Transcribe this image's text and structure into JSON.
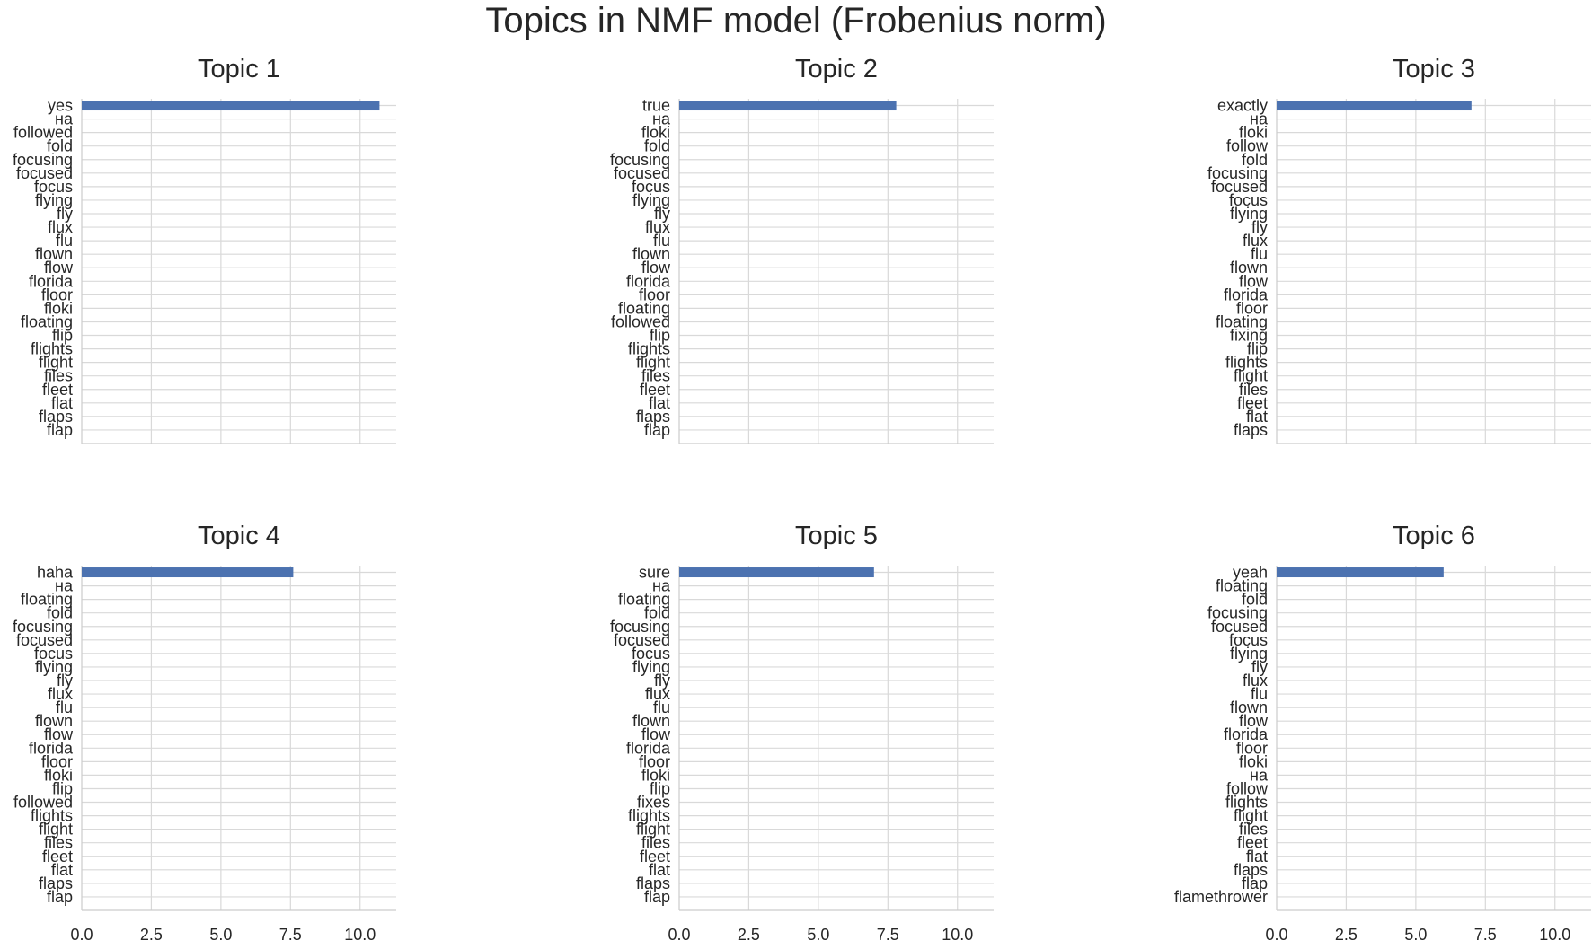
{
  "title": "Topics in NMF model (Frobenius norm)",
  "chart_data": [
    {
      "type": "bar",
      "orientation": "horizontal",
      "title": "Topic 1",
      "categories": [
        "yes",
        "на",
        "followed",
        "fold",
        "focusing",
        "focused",
        "focus",
        "flying",
        "fly",
        "flux",
        "flu",
        "flown",
        "flow",
        "florida",
        "floor",
        "floki",
        "floating",
        "flip",
        "flights",
        "flight",
        "files",
        "fleet",
        "flat",
        "flaps",
        "flap"
      ],
      "values": [
        10.7,
        0,
        0,
        0,
        0,
        0,
        0,
        0,
        0,
        0,
        0,
        0,
        0,
        0,
        0,
        0,
        0,
        0,
        0,
        0,
        0,
        0,
        0,
        0,
        0
      ],
      "xlim": [
        0,
        11.3
      ],
      "xticks": [
        "0.0",
        "2.5",
        "5.0",
        "7.5",
        "10.0"
      ],
      "show_xtick_labels": false,
      "grid": true,
      "bar_color": "#4c72b0"
    },
    {
      "type": "bar",
      "orientation": "horizontal",
      "title": "Topic 2",
      "categories": [
        "true",
        "на",
        "floki",
        "fold",
        "focusing",
        "focused",
        "focus",
        "flying",
        "fly",
        "flux",
        "flu",
        "flown",
        "flow",
        "florida",
        "floor",
        "floating",
        "followed",
        "flip",
        "flights",
        "flight",
        "files",
        "fleet",
        "flat",
        "flaps",
        "flap"
      ],
      "values": [
        7.8,
        0,
        0,
        0,
        0,
        0,
        0,
        0,
        0,
        0,
        0,
        0,
        0,
        0,
        0,
        0,
        0,
        0,
        0,
        0,
        0,
        0,
        0,
        0,
        0
      ],
      "xlim": [
        0,
        11.3
      ],
      "xticks": [
        "0.0",
        "2.5",
        "5.0",
        "7.5",
        "10.0"
      ],
      "show_xtick_labels": false,
      "grid": true,
      "bar_color": "#4c72b0"
    },
    {
      "type": "bar",
      "orientation": "horizontal",
      "title": "Topic 3",
      "categories": [
        "exactly",
        "на",
        "floki",
        "follow",
        "fold",
        "focusing",
        "focused",
        "focus",
        "flying",
        "fly",
        "flux",
        "flu",
        "flown",
        "flow",
        "florida",
        "floor",
        "floating",
        "fixing",
        "flip",
        "flights",
        "flight",
        "files",
        "fleet",
        "flat",
        "flaps"
      ],
      "values": [
        7.0,
        0,
        0,
        0,
        0,
        0,
        0,
        0,
        0,
        0,
        0,
        0,
        0,
        0,
        0,
        0,
        0,
        0,
        0,
        0,
        0,
        0,
        0,
        0,
        0
      ],
      "xlim": [
        0,
        11.3
      ],
      "xticks": [
        "0.0",
        "2.5",
        "5.0",
        "7.5",
        "10.0"
      ],
      "show_xtick_labels": false,
      "grid": true,
      "bar_color": "#4c72b0"
    },
    {
      "type": "bar",
      "orientation": "horizontal",
      "title": "Topic 4",
      "categories": [
        "haha",
        "на",
        "floating",
        "fold",
        "focusing",
        "focused",
        "focus",
        "flying",
        "fly",
        "flux",
        "flu",
        "flown",
        "flow",
        "florida",
        "floor",
        "floki",
        "flip",
        "followed",
        "flights",
        "flight",
        "files",
        "fleet",
        "flat",
        "flaps",
        "flap"
      ],
      "values": [
        7.6,
        0,
        0,
        0,
        0,
        0,
        0,
        0,
        0,
        0,
        0,
        0,
        0,
        0,
        0,
        0,
        0,
        0,
        0,
        0,
        0,
        0,
        0,
        0,
        0
      ],
      "xlim": [
        0,
        11.3
      ],
      "xticks": [
        "0.0",
        "2.5",
        "5.0",
        "7.5",
        "10.0"
      ],
      "show_xtick_labels": true,
      "grid": true,
      "bar_color": "#4c72b0"
    },
    {
      "type": "bar",
      "orientation": "horizontal",
      "title": "Topic 5",
      "categories": [
        "sure",
        "на",
        "floating",
        "fold",
        "focusing",
        "focused",
        "focus",
        "flying",
        "fly",
        "flux",
        "flu",
        "flown",
        "flow",
        "florida",
        "floor",
        "floki",
        "flip",
        "fixes",
        "flights",
        "flight",
        "files",
        "fleet",
        "flat",
        "flaps",
        "flap"
      ],
      "values": [
        7.0,
        0,
        0,
        0,
        0,
        0,
        0,
        0,
        0,
        0,
        0,
        0,
        0,
        0,
        0,
        0,
        0,
        0,
        0,
        0,
        0,
        0,
        0,
        0,
        0
      ],
      "xlim": [
        0,
        11.3
      ],
      "xticks": [
        "0.0",
        "2.5",
        "5.0",
        "7.5",
        "10.0"
      ],
      "show_xtick_labels": true,
      "grid": true,
      "bar_color": "#4c72b0"
    },
    {
      "type": "bar",
      "orientation": "horizontal",
      "title": "Topic 6",
      "categories": [
        "yeah",
        "floating",
        "fold",
        "focusing",
        "focused",
        "focus",
        "flying",
        "fly",
        "flux",
        "flu",
        "flown",
        "flow",
        "florida",
        "floor",
        "floki",
        "на",
        "follow",
        "flights",
        "flight",
        "files",
        "fleet",
        "flat",
        "flaps",
        "flap",
        "flamethrower"
      ],
      "values": [
        6.0,
        0,
        0,
        0,
        0,
        0,
        0,
        0,
        0,
        0,
        0,
        0,
        0,
        0,
        0,
        0,
        0,
        0,
        0,
        0,
        0,
        0,
        0,
        0,
        0
      ],
      "xlim": [
        0,
        11.3
      ],
      "xticks": [
        "0.0",
        "2.5",
        "5.0",
        "7.5",
        "10.0"
      ],
      "show_xtick_labels": true,
      "grid": true,
      "bar_color": "#4c72b0"
    }
  ]
}
